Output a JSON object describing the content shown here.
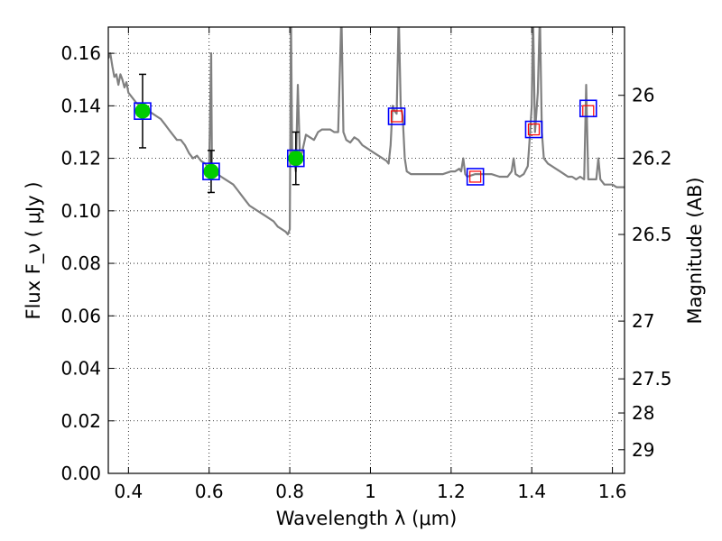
{
  "chart_data": {
    "type": "scatter",
    "xlabel": "Wavelength  λ (μm)",
    "ylabel": "Flux  F_ν  ( μJy )",
    "y2label": "Magnitude (AB)",
    "xlim": [
      0.35,
      1.63
    ],
    "ylim": [
      0.0,
      0.17
    ],
    "grid": true,
    "x_ticks": [
      0.4,
      0.6,
      0.8,
      1.0,
      1.2,
      1.4,
      1.6
    ],
    "x_tick_labels": [
      "0.4",
      "0.6",
      "0.8",
      "1",
      "1.2",
      "1.4",
      "1.6"
    ],
    "y_ticks": [
      0.0,
      0.02,
      0.04,
      0.06,
      0.08,
      0.1,
      0.12,
      0.14,
      0.16
    ],
    "y_tick_labels": [
      "0.00",
      "0.02",
      "0.04",
      "0.06",
      "0.08",
      "0.10",
      "0.12",
      "0.14",
      "0.16"
    ],
    "y2_ticks": [
      {
        "label": "26",
        "flux": 0.144
      },
      {
        "label": "26.2",
        "flux": 0.12
      },
      {
        "label": "26.5",
        "flux": 0.091
      },
      {
        "label": "27",
        "flux": 0.058
      },
      {
        "label": "27.5",
        "flux": 0.036
      },
      {
        "label": "28",
        "flux": 0.023
      },
      {
        "label": "29",
        "flux": 0.009
      }
    ],
    "series": [
      {
        "kind": "model_spectrum",
        "color": "#808080",
        "points": [
          [
            0.35,
            0.158
          ],
          [
            0.355,
            0.16
          ],
          [
            0.36,
            0.155
          ],
          [
            0.365,
            0.151
          ],
          [
            0.37,
            0.152
          ],
          [
            0.375,
            0.148
          ],
          [
            0.38,
            0.152
          ],
          [
            0.385,
            0.15
          ],
          [
            0.39,
            0.147
          ],
          [
            0.395,
            0.149
          ],
          [
            0.4,
            0.145
          ],
          [
            0.41,
            0.143
          ],
          [
            0.42,
            0.141
          ],
          [
            0.43,
            0.14
          ],
          [
            0.44,
            0.139
          ],
          [
            0.45,
            0.138
          ],
          [
            0.46,
            0.137
          ],
          [
            0.47,
            0.136
          ],
          [
            0.48,
            0.135
          ],
          [
            0.49,
            0.133
          ],
          [
            0.5,
            0.131
          ],
          [
            0.51,
            0.129
          ],
          [
            0.52,
            0.127
          ],
          [
            0.53,
            0.127
          ],
          [
            0.54,
            0.125
          ],
          [
            0.55,
            0.122
          ],
          [
            0.56,
            0.12
          ],
          [
            0.57,
            0.121
          ],
          [
            0.58,
            0.119
          ],
          [
            0.59,
            0.118
          ],
          [
            0.6,
            0.116
          ],
          [
            0.605,
            0.16
          ],
          [
            0.607,
            0.118
          ],
          [
            0.61,
            0.116
          ],
          [
            0.62,
            0.114
          ],
          [
            0.63,
            0.113
          ],
          [
            0.64,
            0.112
          ],
          [
            0.65,
            0.111
          ],
          [
            0.66,
            0.11
          ],
          [
            0.67,
            0.108
          ],
          [
            0.68,
            0.106
          ],
          [
            0.69,
            0.104
          ],
          [
            0.7,
            0.102
          ],
          [
            0.71,
            0.101
          ],
          [
            0.72,
            0.1
          ],
          [
            0.73,
            0.099
          ],
          [
            0.74,
            0.098
          ],
          [
            0.75,
            0.097
          ],
          [
            0.76,
            0.096
          ],
          [
            0.77,
            0.094
          ],
          [
            0.78,
            0.093
          ],
          [
            0.79,
            0.092
          ],
          [
            0.795,
            0.091
          ],
          [
            0.8,
            0.093
          ],
          [
            0.803,
            0.175
          ],
          [
            0.806,
            0.118
          ],
          [
            0.81,
            0.12
          ],
          [
            0.815,
            0.115
          ],
          [
            0.82,
            0.148
          ],
          [
            0.825,
            0.121
          ],
          [
            0.83,
            0.122
          ],
          [
            0.84,
            0.129
          ],
          [
            0.85,
            0.128
          ],
          [
            0.86,
            0.127
          ],
          [
            0.87,
            0.13
          ],
          [
            0.88,
            0.131
          ],
          [
            0.89,
            0.131
          ],
          [
            0.9,
            0.131
          ],
          [
            0.91,
            0.13
          ],
          [
            0.92,
            0.13
          ],
          [
            0.928,
            0.175
          ],
          [
            0.933,
            0.13
          ],
          [
            0.94,
            0.127
          ],
          [
            0.95,
            0.126
          ],
          [
            0.96,
            0.128
          ],
          [
            0.97,
            0.127
          ],
          [
            0.98,
            0.125
          ],
          [
            0.99,
            0.124
          ],
          [
            1.0,
            0.123
          ],
          [
            1.01,
            0.122
          ],
          [
            1.02,
            0.121
          ],
          [
            1.03,
            0.12
          ],
          [
            1.04,
            0.119
          ],
          [
            1.045,
            0.118
          ],
          [
            1.05,
            0.125
          ],
          [
            1.055,
            0.14
          ],
          [
            1.06,
            0.138
          ],
          [
            1.065,
            0.137
          ],
          [
            1.07,
            0.175
          ],
          [
            1.075,
            0.14
          ],
          [
            1.08,
            0.136
          ],
          [
            1.085,
            0.12
          ],
          [
            1.09,
            0.115
          ],
          [
            1.1,
            0.114
          ],
          [
            1.12,
            0.114
          ],
          [
            1.14,
            0.114
          ],
          [
            1.16,
            0.114
          ],
          [
            1.18,
            0.114
          ],
          [
            1.2,
            0.115
          ],
          [
            1.21,
            0.115
          ],
          [
            1.22,
            0.116
          ],
          [
            1.225,
            0.115
          ],
          [
            1.23,
            0.12
          ],
          [
            1.235,
            0.114
          ],
          [
            1.24,
            0.113
          ],
          [
            1.26,
            0.114
          ],
          [
            1.28,
            0.114
          ],
          [
            1.3,
            0.114
          ],
          [
            1.32,
            0.113
          ],
          [
            1.34,
            0.113
          ],
          [
            1.35,
            0.115
          ],
          [
            1.355,
            0.12
          ],
          [
            1.36,
            0.114
          ],
          [
            1.37,
            0.113
          ],
          [
            1.38,
            0.114
          ],
          [
            1.39,
            0.117
          ],
          [
            1.395,
            0.128
          ],
          [
            1.4,
            0.14
          ],
          [
            1.403,
            0.175
          ],
          [
            1.408,
            0.13
          ],
          [
            1.415,
            0.145
          ],
          [
            1.42,
            0.175
          ],
          [
            1.425,
            0.13
          ],
          [
            1.43,
            0.12
          ],
          [
            1.44,
            0.118
          ],
          [
            1.45,
            0.117
          ],
          [
            1.46,
            0.116
          ],
          [
            1.47,
            0.115
          ],
          [
            1.48,
            0.114
          ],
          [
            1.49,
            0.113
          ],
          [
            1.5,
            0.113
          ],
          [
            1.51,
            0.112
          ],
          [
            1.52,
            0.113
          ],
          [
            1.53,
            0.112
          ],
          [
            1.535,
            0.148
          ],
          [
            1.54,
            0.112
          ],
          [
            1.55,
            0.112
          ],
          [
            1.56,
            0.112
          ],
          [
            1.565,
            0.12
          ],
          [
            1.57,
            0.112
          ],
          [
            1.58,
            0.11
          ],
          [
            1.59,
            0.11
          ],
          [
            1.6,
            0.11
          ],
          [
            1.61,
            0.109
          ],
          [
            1.62,
            0.109
          ],
          [
            1.63,
            0.109
          ]
        ]
      },
      {
        "kind": "observed",
        "color": "#00cc00",
        "points": [
          {
            "x": 0.435,
            "y": 0.138,
            "err": 0.014
          },
          {
            "x": 0.605,
            "y": 0.115,
            "err": 0.008
          },
          {
            "x": 0.815,
            "y": 0.12,
            "err": 0.01
          }
        ]
      },
      {
        "kind": "model_photometry",
        "color": "#0000ff",
        "points": [
          [
            0.435,
            0.138
          ],
          [
            0.605,
            0.115
          ],
          [
            0.815,
            0.12
          ],
          [
            1.065,
            0.136
          ],
          [
            1.26,
            0.113
          ],
          [
            1.405,
            0.131
          ],
          [
            1.54,
            0.139
          ]
        ]
      },
      {
        "kind": "upper_limit",
        "color": "#ff0000",
        "points": [
          [
            1.065,
            0.136
          ],
          [
            1.26,
            0.113
          ],
          [
            1.405,
            0.131
          ],
          [
            1.54,
            0.138
          ]
        ]
      }
    ]
  }
}
